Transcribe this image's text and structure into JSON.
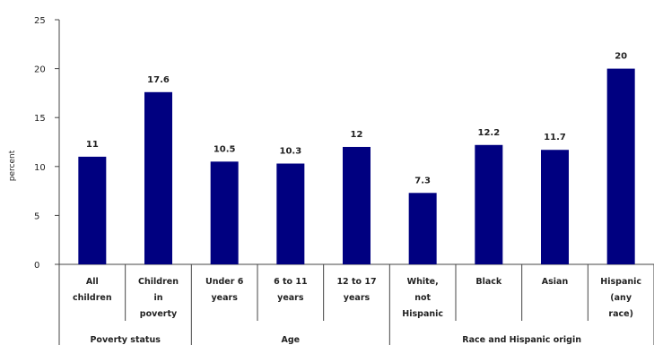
{
  "chart_data": {
    "type": "bar",
    "ylabel": "percent",
    "ylim": [
      0,
      25
    ],
    "yticks": [
      "0",
      "5",
      "10",
      "15",
      "20",
      "25"
    ],
    "categories": [
      [
        "All",
        "children"
      ],
      [
        "Children",
        "in",
        "poverty"
      ],
      [
        "Under 6",
        "years"
      ],
      [
        "6 to 11",
        "years"
      ],
      [
        "12 to 17",
        "years"
      ],
      [
        "White,",
        "not",
        "Hispanic"
      ],
      [
        "Black"
      ],
      [
        "Asian"
      ],
      [
        "Hispanic",
        "(any",
        "race)"
      ]
    ],
    "values": [
      11,
      17.6,
      10.5,
      10.3,
      12,
      7.3,
      12.2,
      11.7,
      20
    ],
    "value_labels": [
      "11",
      "17.6",
      "10.5",
      "10.3",
      "12",
      "7.3",
      "12.2",
      "11.7",
      "20"
    ],
    "groups": [
      {
        "label": "Poverty status",
        "span": [
          0,
          1
        ]
      },
      {
        "label": "Age",
        "span": [
          2,
          4
        ]
      },
      {
        "label": "Race and Hispanic origin",
        "span": [
          5,
          8
        ]
      }
    ],
    "bar_color": "#000080"
  }
}
